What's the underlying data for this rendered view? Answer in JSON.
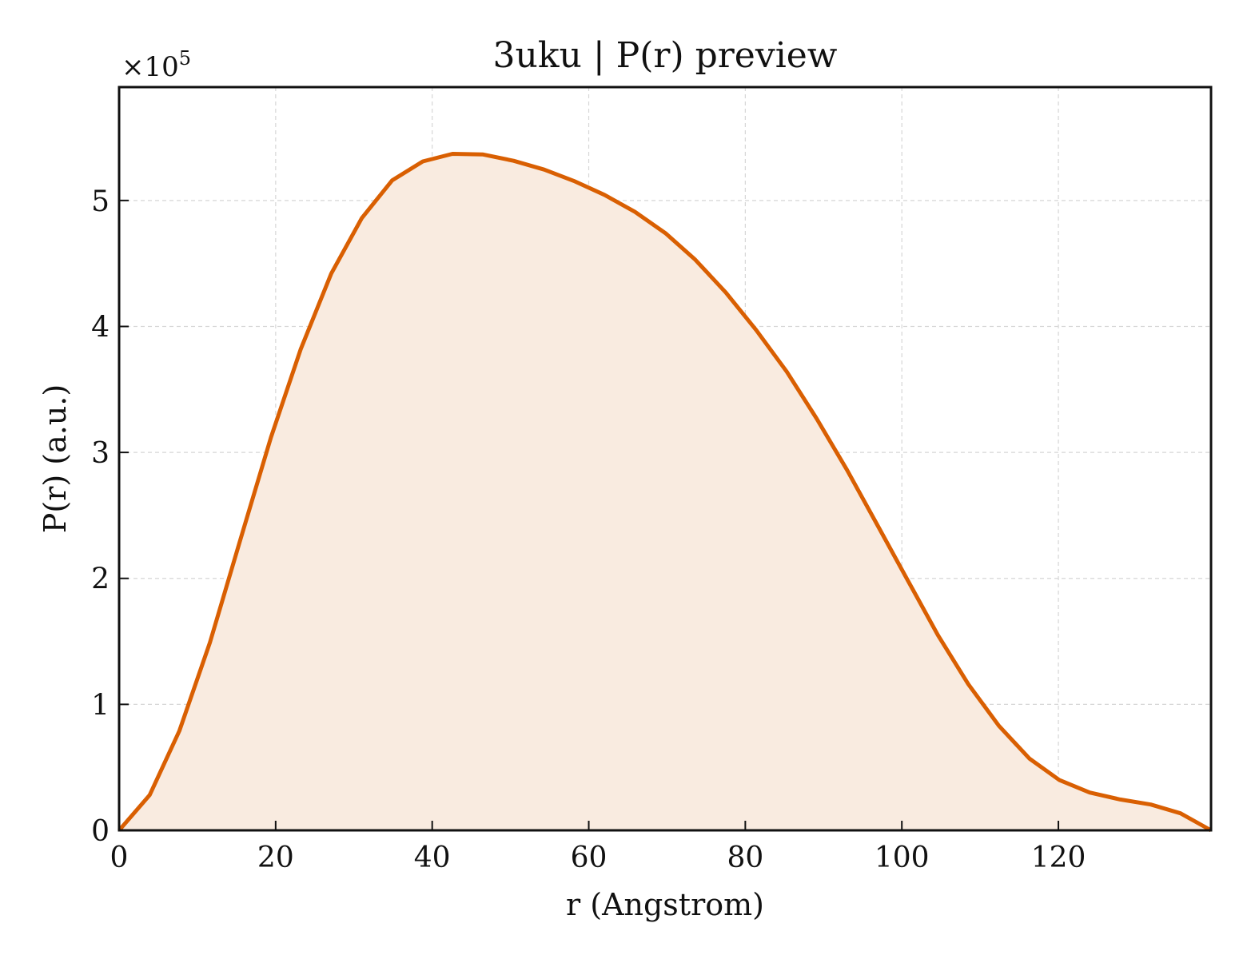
{
  "chart_data": {
    "type": "area",
    "title": "3uku | P(r) preview",
    "xlabel": "r (Angstrom)",
    "ylabel": "P(r) (a.u.)",
    "y_multiplier": {
      "base": "×10",
      "exponent": "5"
    },
    "xlim": [
      0,
      139.5
    ],
    "ylim": [
      0,
      5.9
    ],
    "x_ticks": [
      0,
      20,
      40,
      60,
      80,
      100,
      120
    ],
    "y_ticks": [
      0,
      1,
      2,
      3,
      4,
      5
    ],
    "grid": true,
    "line_color": "#d95f02",
    "fill_color": "#f9ebe0",
    "series": [
      {
        "x": [
          0,
          3.9,
          7.7,
          11.6,
          15.5,
          19.4,
          23.2,
          27.1,
          31.0,
          34.9,
          38.8,
          42.6,
          46.5,
          50.4,
          54.3,
          58.1,
          62.0,
          65.9,
          69.8,
          73.6,
          77.5,
          81.4,
          85.3,
          89.1,
          93.0,
          96.9,
          100.8,
          104.6,
          108.5,
          112.4,
          116.3,
          120.1,
          124.0,
          127.9,
          131.8,
          135.6,
          139.5
        ],
        "y": [
          0,
          0.28,
          0.79,
          1.49,
          2.31,
          3.12,
          3.82,
          4.42,
          4.86,
          5.16,
          5.31,
          5.37,
          5.365,
          5.315,
          5.245,
          5.155,
          5.045,
          4.91,
          4.74,
          4.53,
          4.27,
          3.97,
          3.64,
          3.27,
          2.86,
          2.42,
          1.98,
          1.55,
          1.16,
          0.83,
          0.57,
          0.4,
          0.3,
          0.245,
          0.205,
          0.135,
          0
        ]
      }
    ]
  }
}
